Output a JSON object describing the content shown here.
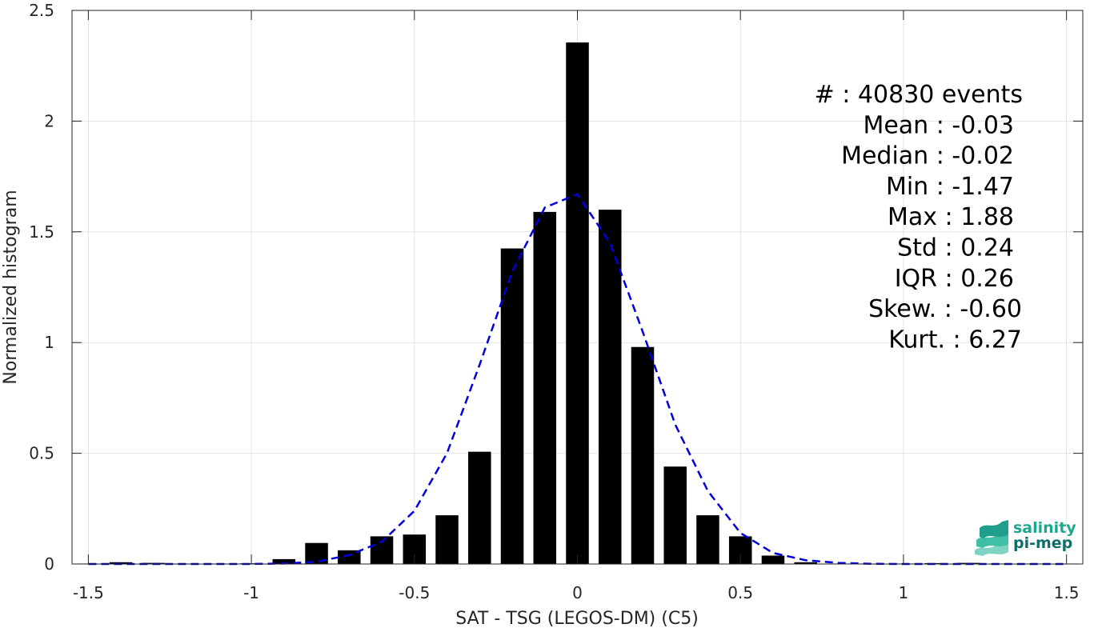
{
  "chart_data": {
    "type": "bar",
    "xlabel": "SAT - TSG (LEGOS-DM) (C5)",
    "ylabel": "Normalized histogram",
    "xlim": [
      -1.55,
      1.55
    ],
    "ylim": [
      0,
      2.5
    ],
    "xticks": [
      -1.5,
      -1,
      -0.5,
      0,
      0.5,
      1,
      1.5
    ],
    "xtick_labels": [
      "-1.5",
      "-1",
      "-0.5",
      "0",
      "0.5",
      "1",
      "1.5"
    ],
    "yticks": [
      0,
      0.5,
      1,
      1.5,
      2,
      2.5
    ],
    "ytick_labels": [
      "0",
      "0.5",
      "1",
      "1.5",
      "2",
      "2.5"
    ],
    "grid": true,
    "bar_width": 0.07,
    "bars": {
      "x": [
        -1.5,
        -1.4,
        -1.3,
        -1.2,
        -1.1,
        -1.0,
        -0.9,
        -0.8,
        -0.7,
        -0.6,
        -0.5,
        -0.4,
        -0.3,
        -0.2,
        -0.1,
        0.0,
        0.1,
        0.2,
        0.3,
        0.4,
        0.5,
        0.6,
        0.7,
        0.8,
        0.9,
        1.0,
        1.1,
        1.2,
        1.3,
        1.4,
        1.5
      ],
      "values": [
        0.002,
        0.008,
        0.005,
        0.002,
        0.002,
        0.003,
        0.022,
        0.095,
        0.062,
        0.125,
        0.133,
        0.22,
        0.507,
        1.425,
        1.59,
        2.355,
        1.6,
        0.98,
        0.44,
        0.22,
        0.125,
        0.038,
        0.008,
        0.002,
        0.002,
        0.002,
        0.004,
        0.005,
        0.002,
        0.002,
        0.002
      ],
      "color": "#000000"
    },
    "fit_curve": {
      "style": "dashed",
      "color": "#0000dd",
      "x": [
        -1.5,
        -1.4,
        -1.3,
        -1.2,
        -1.1,
        -1.0,
        -0.9,
        -0.8,
        -0.7,
        -0.6,
        -0.5,
        -0.4,
        -0.3,
        -0.2,
        -0.1,
        0.0,
        0.1,
        0.2,
        0.3,
        0.4,
        0.5,
        0.6,
        0.7,
        0.8,
        0.9,
        1.0,
        1.1,
        1.2,
        1.3,
        1.4,
        1.5
      ],
      "y": [
        0.0,
        0.0,
        0.0,
        0.0,
        0.0,
        0.0,
        0.002,
        0.01,
        0.04,
        0.1,
        0.24,
        0.5,
        0.9,
        1.32,
        1.61,
        1.67,
        1.45,
        1.05,
        0.63,
        0.33,
        0.14,
        0.05,
        0.017,
        0.005,
        0.001,
        0.0,
        0.0,
        0.0,
        0.0,
        0.0,
        0.0
      ]
    }
  },
  "stats": [
    {
      "label": "#  : 40830 events"
    },
    {
      "label": "Mean : -0.03"
    },
    {
      "label": "Median : -0.02"
    },
    {
      "label": "Min : -1.47"
    },
    {
      "label": "Max : 1.88"
    },
    {
      "label": "Std : 0.24"
    },
    {
      "label": "IQR : 0.26"
    },
    {
      "label": "Skew. : -0.60"
    },
    {
      "label": "Kurt. : 6.27"
    }
  ],
  "logo": {
    "line1": "salinity",
    "line2": "pi-mep",
    "color1": "#1aa88e",
    "color2": "#0f6e6a"
  }
}
